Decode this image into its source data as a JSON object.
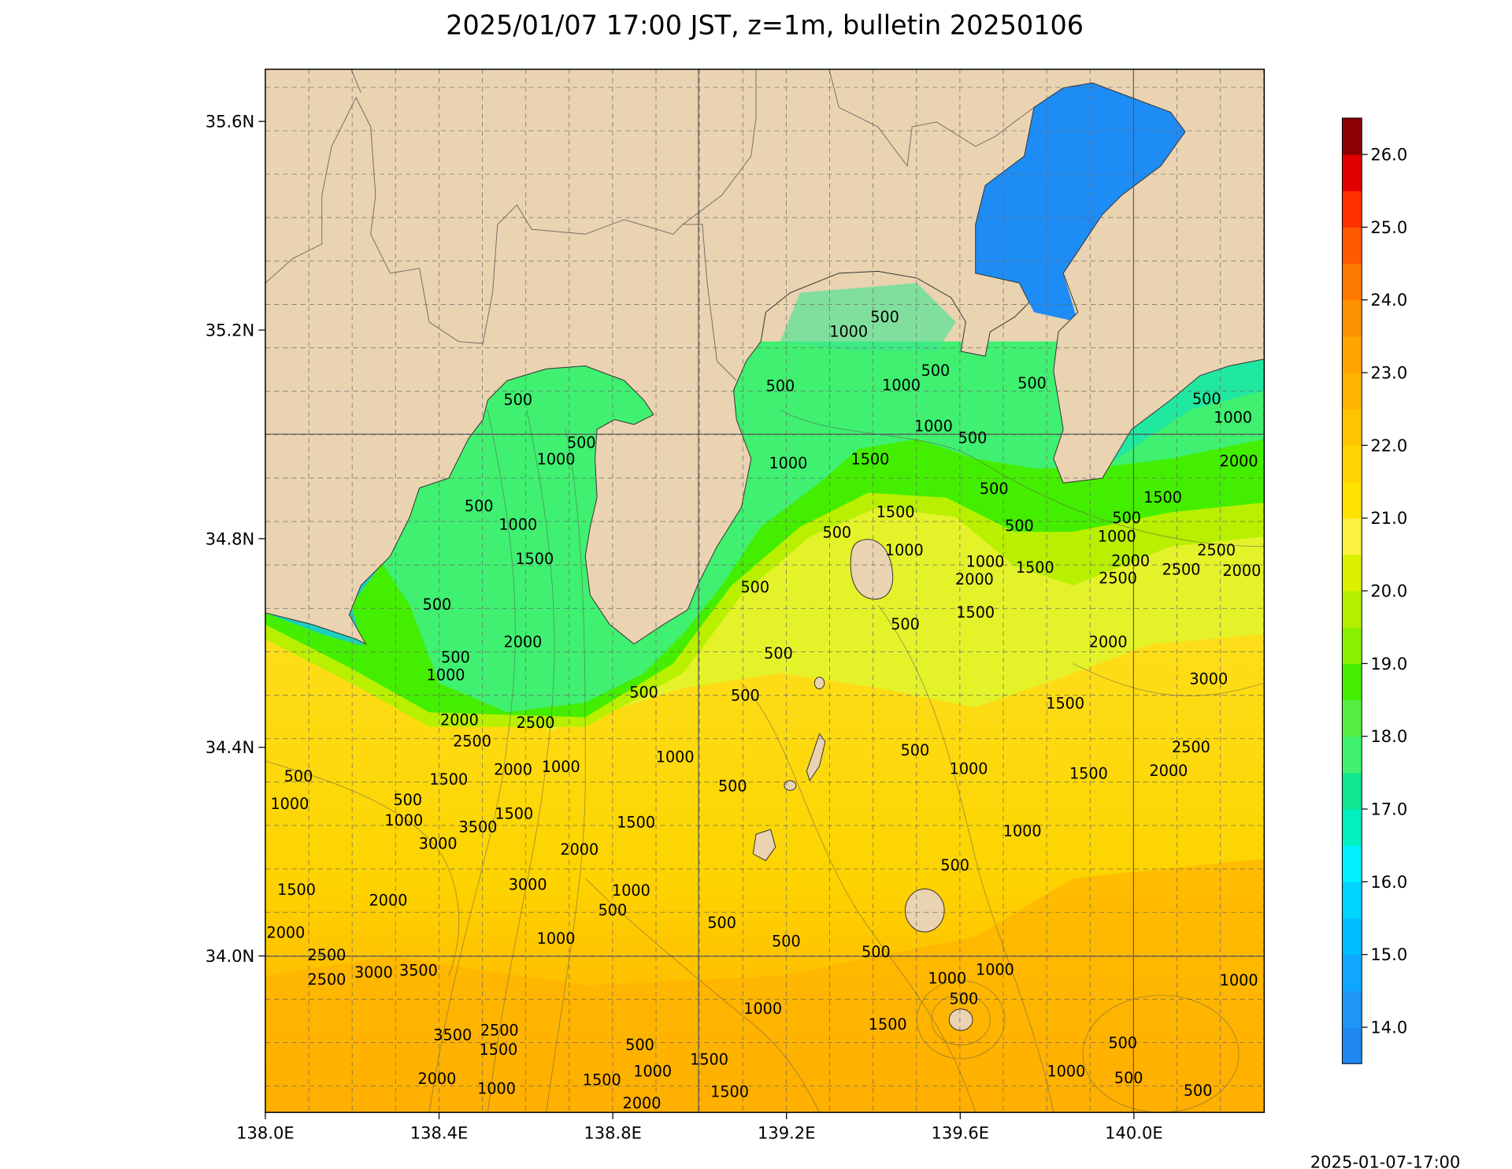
{
  "title": "2025/01/07 17:00 JST, z=1m, bulletin 20250106",
  "timestamp": "2025-01-07-17:00",
  "map": {
    "xlim": [
      138.0,
      140.3
    ],
    "ylim": [
      33.7,
      35.7
    ],
    "xticks": [
      {
        "value": 138.0,
        "label": "138.0E"
      },
      {
        "value": 138.4,
        "label": "138.4E"
      },
      {
        "value": 138.8,
        "label": "138.8E"
      },
      {
        "value": 139.2,
        "label": "139.2E"
      },
      {
        "value": 139.6,
        "label": "139.6E"
      },
      {
        "value": 140.0,
        "label": "140.0E"
      }
    ],
    "yticks": [
      {
        "value": 34.0,
        "label": "34.0N"
      },
      {
        "value": 34.4,
        "label": "34.4N"
      },
      {
        "value": 34.8,
        "label": "34.8N"
      },
      {
        "value": 35.2,
        "label": "35.2N"
      },
      {
        "value": 35.6,
        "label": "35.6N"
      }
    ],
    "land_color": "#ead3b1",
    "contour_labels": [
      500,
      1000,
      500,
      500,
      1000,
      1500,
      500,
      2000,
      500,
      1000,
      2000,
      2500,
      2500,
      500,
      500,
      500,
      500,
      1000,
      1500,
      500,
      1000,
      500,
      500,
      1000,
      1000,
      500,
      500,
      500,
      1000,
      2000,
      1500,
      500,
      1000,
      500,
      500,
      1500,
      500,
      1000,
      1000,
      2000,
      1500,
      2000,
      2500,
      2500,
      2500,
      2000,
      1500,
      500,
      2000,
      3000,
      1500,
      500,
      1000,
      2500,
      2000,
      1500,
      1000,
      500,
      1000,
      500,
      1500,
      2000,
      1000,
      1500,
      500,
      1000,
      500,
      1000,
      3500,
      1500,
      3000,
      2000,
      3000,
      1000,
      500,
      1500,
      2000,
      2000,
      1000,
      500,
      500,
      500,
      2500,
      2500,
      3000,
      3500,
      1000,
      1000,
      500,
      1000,
      1000,
      1500,
      3500,
      2500,
      1500,
      500,
      1000,
      1500,
      500,
      1000,
      500,
      500,
      2000,
      1000,
      1500,
      1500,
      2000
    ]
  },
  "colorbar": {
    "lim": [
      13.5,
      26.5
    ],
    "ticks": [
      {
        "value": 14,
        "label": "14.0"
      },
      {
        "value": 15,
        "label": "15.0"
      },
      {
        "value": 16,
        "label": "16.0"
      },
      {
        "value": 17,
        "label": "17.0"
      },
      {
        "value": 18,
        "label": "18.0"
      },
      {
        "value": 19,
        "label": "19.0"
      },
      {
        "value": 20,
        "label": "20.0"
      },
      {
        "value": 21,
        "label": "21.0"
      },
      {
        "value": 22,
        "label": "22.0"
      },
      {
        "value": 23,
        "label": "23.0"
      },
      {
        "value": 24,
        "label": "24.0"
      },
      {
        "value": 25,
        "label": "25.0"
      },
      {
        "value": 26,
        "label": "26.0"
      }
    ],
    "colors": [
      "#1e88f0",
      "#1e96f5",
      "#10a8ff",
      "#00bcff",
      "#00d4ff",
      "#00f0ff",
      "#00f0c0",
      "#10e890",
      "#40f070",
      "#55ee44",
      "#44ee00",
      "#88f000",
      "#b4f000",
      "#dcf000",
      "#fcf040",
      "#ffe200",
      "#ffd400",
      "#ffc400",
      "#ffb400",
      "#ffa400",
      "#ff9200",
      "#ff7a00",
      "#ff5a00",
      "#ff3000",
      "#e00000",
      "#8b0000"
    ]
  }
}
